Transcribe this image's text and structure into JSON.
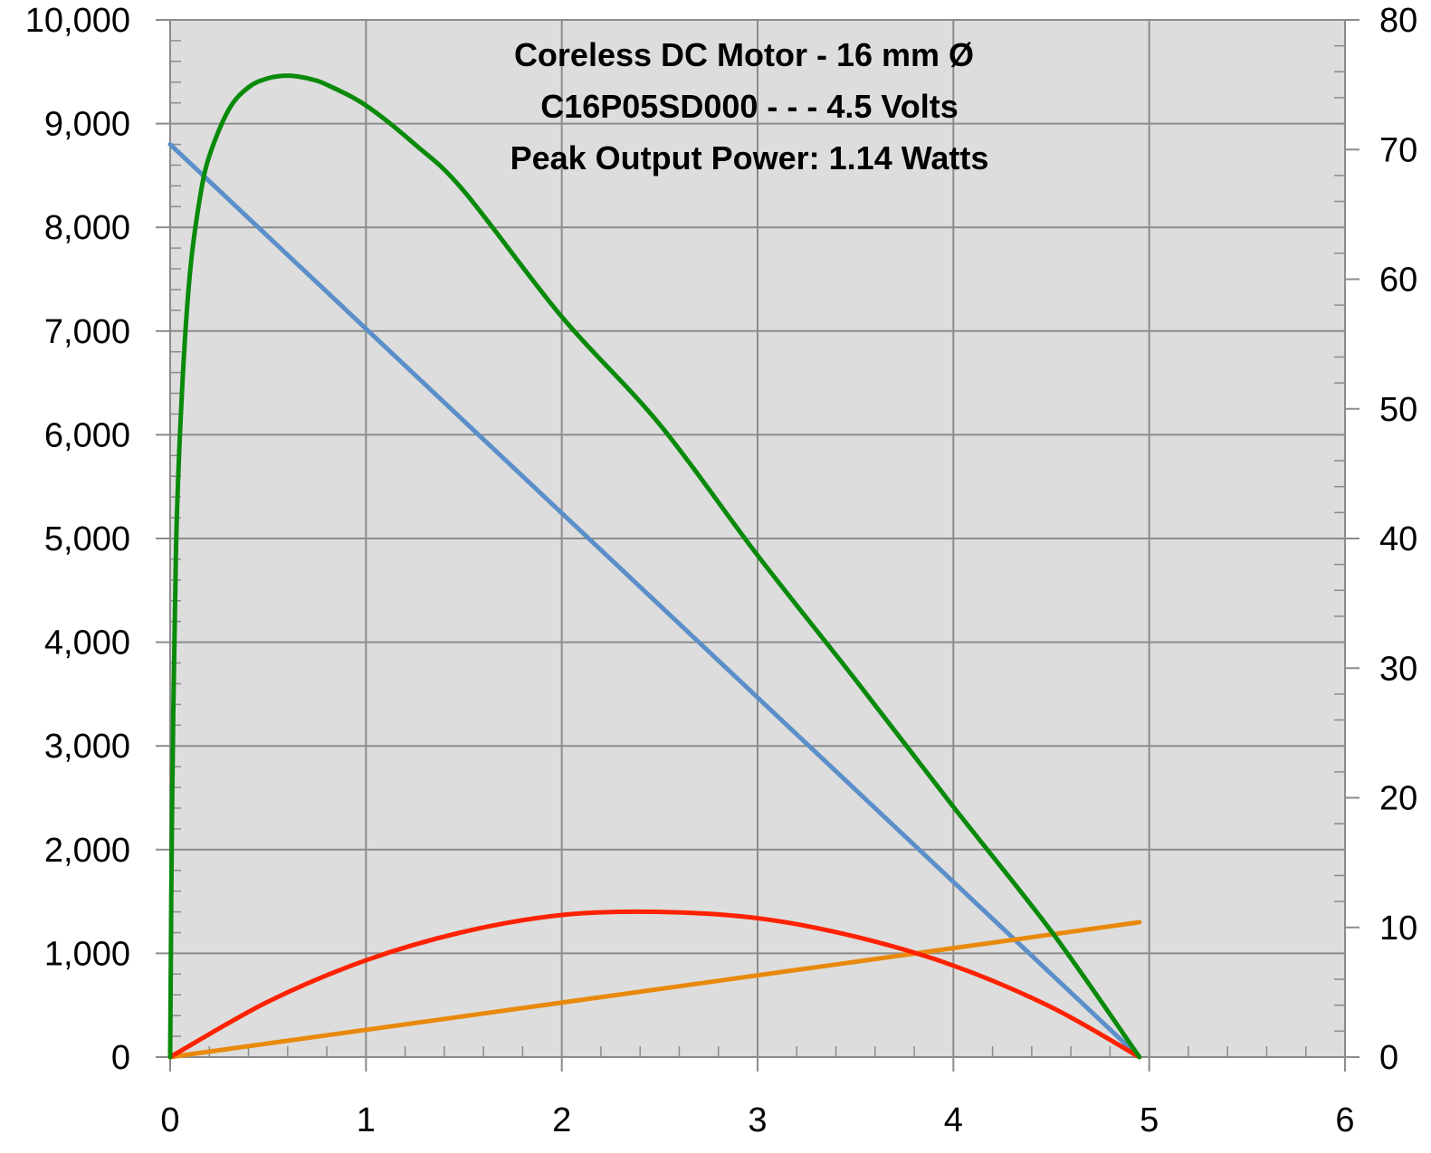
{
  "chart_data": {
    "type": "line",
    "title_lines": [
      "Coreless DC Motor - 16 mm Ø",
      "C16P05SD000 - - - 4.5 Volts",
      "Peak Output Power: 1.14 Watts"
    ],
    "xlabel": "",
    "ylabel": "",
    "y2label": "",
    "xlim": [
      0,
      6
    ],
    "ylim": [
      0,
      10000
    ],
    "y2lim": [
      0,
      80
    ],
    "x_ticks": [
      "0",
      "1",
      "2",
      "3",
      "4",
      "5",
      "6"
    ],
    "y_ticks": [
      "0",
      "1,000",
      "2,000",
      "3,000",
      "4,000",
      "5,000",
      "6,000",
      "7,000",
      "8,000",
      "9,000",
      "10,000"
    ],
    "y2_ticks": [
      "0",
      "10",
      "20",
      "30",
      "40",
      "50",
      "60",
      "70",
      "80"
    ],
    "grid": true,
    "legend": "none",
    "plot_background": "#dddddd",
    "series": [
      {
        "axis": "left",
        "color": "#5b8fc9",
        "x": [
          0,
          4.95
        ],
        "y": [
          8800,
          0
        ]
      },
      {
        "axis": "right",
        "color": "#e8890c",
        "x": [
          0,
          4.95
        ],
        "y": [
          0,
          10.4
        ]
      },
      {
        "axis": "left",
        "color": "#ff2200",
        "x": [
          0,
          0.5,
          1.0,
          1.5,
          2.0,
          2.48,
          3.0,
          3.5,
          4.0,
          4.5,
          4.95
        ],
        "y": [
          0,
          534,
          933,
          1208,
          1370,
          1400,
          1339,
          1161,
          882,
          481,
          0
        ]
      },
      {
        "axis": "right",
        "color": "#0a8a0a",
        "x": [
          0,
          0.01,
          0.03,
          0.06,
          0.1,
          0.15,
          0.2,
          0.3,
          0.4,
          0.5,
          0.6,
          0.7,
          0.8,
          1.0,
          1.25,
          1.5,
          2.0,
          2.5,
          3.0,
          3.5,
          4.0,
          4.5,
          4.95
        ],
        "y": [
          0,
          19.3,
          39.3,
          51.2,
          60.3,
          66.1,
          69.5,
          73.1,
          74.8,
          75.5,
          75.7,
          75.5,
          75.0,
          73.4,
          70.4,
          66.8,
          57.1,
          48.8,
          38.7,
          29.1,
          19.3,
          9.7,
          0
        ]
      }
    ]
  }
}
